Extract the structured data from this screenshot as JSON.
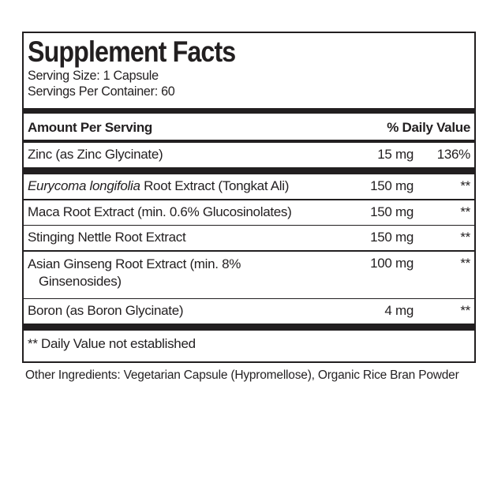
{
  "title": "Supplement Facts",
  "serving_size": "Serving Size: 1 Capsule",
  "servings_per_container": "Servings Per Container: 60",
  "header": {
    "amount_label": "Amount Per Serving",
    "dv_label": "% Daily Value"
  },
  "rows": [
    {
      "name": "Zinc (as Zinc Glycinate)",
      "amount": "15 mg",
      "dv": "136%"
    },
    {
      "name_italic": "Eurycoma longifolia",
      "name_rest": " Root Extract (Tongkat Ali)",
      "amount": "150 mg",
      "dv": "**"
    },
    {
      "name": "Maca Root Extract (min. 0.6% Glucosinolates)",
      "amount": "150 mg",
      "dv": "**"
    },
    {
      "name": "Stinging Nettle Root Extract",
      "amount": "150 mg",
      "dv": "**"
    },
    {
      "name_line1": "Asian Ginseng Root Extract (min. 8%",
      "name_line2": "Ginsenosides)",
      "amount": "100 mg",
      "dv": "**"
    },
    {
      "name": "Boron (as Boron Glycinate)",
      "amount": "4 mg",
      "dv": "**"
    }
  ],
  "footnote": "** Daily Value not established",
  "other_ingredients": "Other Ingredients: Vegetarian Capsule (Hypromellose), Organic Rice Bran Powder",
  "colors": {
    "ink": "#221f20",
    "background": "#ffffff"
  }
}
